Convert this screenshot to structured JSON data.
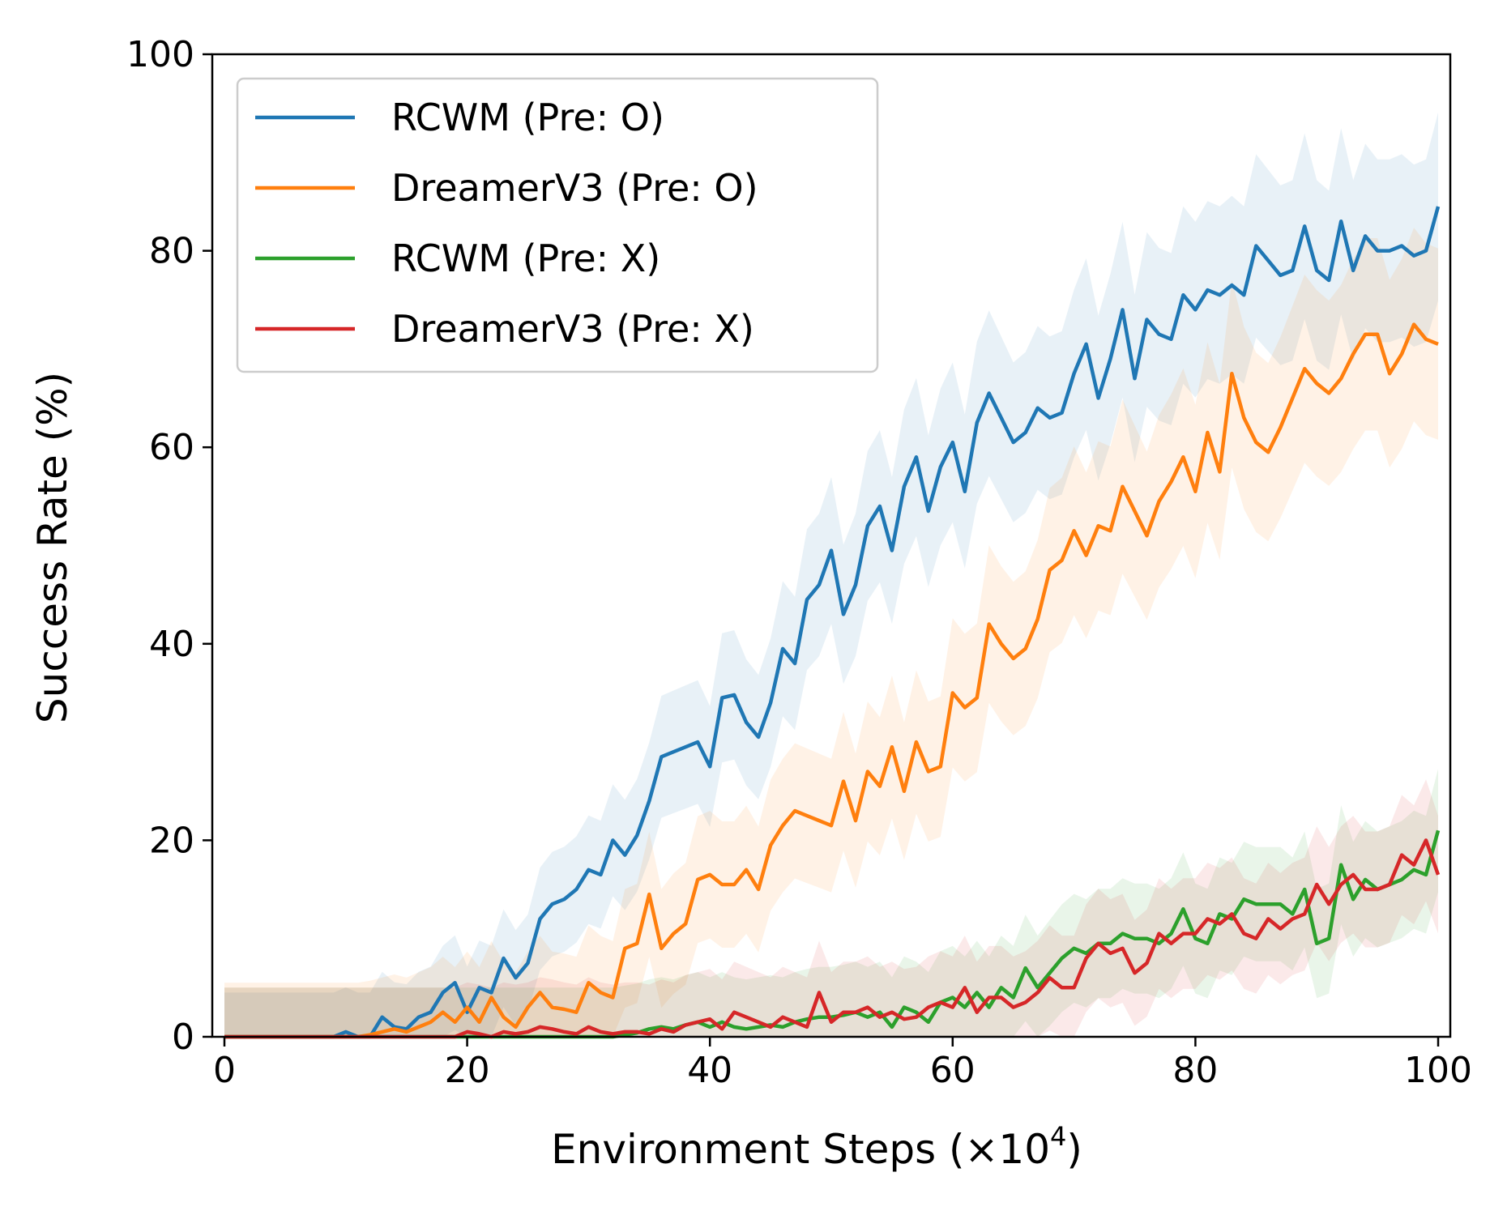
{
  "chart_data": {
    "type": "line",
    "title": "",
    "xlabel": "Environment Steps (×10",
    "xlabel_exponent": "4",
    "xlabel_close": ")",
    "ylabel": "Success Rate (%)",
    "xlim": [
      -1,
      101
    ],
    "ylim": [
      0,
      100
    ],
    "xticks": [
      "0",
      "20",
      "40",
      "60",
      "80",
      "100"
    ],
    "yticks": [
      "0",
      "20",
      "40",
      "60",
      "80",
      "100"
    ],
    "grid": false,
    "legend_position": "top-left",
    "x": [
      0,
      1,
      2,
      3,
      4,
      5,
      6,
      7,
      8,
      9,
      10,
      11,
      12,
      13,
      14,
      15,
      16,
      17,
      18,
      19,
      20,
      21,
      22,
      23,
      24,
      25,
      26,
      27,
      28,
      29,
      30,
      31,
      32,
      33,
      34,
      35,
      36,
      37,
      38,
      39,
      40,
      41,
      42,
      43,
      44,
      45,
      46,
      47,
      48,
      49,
      50,
      51,
      52,
      53,
      54,
      55,
      56,
      57,
      58,
      59,
      60,
      61,
      62,
      63,
      64,
      65,
      66,
      67,
      68,
      69,
      70,
      71,
      72,
      73,
      74,
      75,
      76,
      77,
      78,
      79,
      80,
      81,
      82,
      83,
      84,
      85,
      86,
      87,
      88,
      89,
      90,
      91,
      92,
      93,
      94,
      95,
      96,
      97,
      98,
      99,
      100
    ],
    "series": [
      {
        "name": "RCWM (Pre: O)",
        "color": "#1f77b4",
        "values": [
          0,
          0,
          0,
          0,
          0,
          0,
          0,
          0,
          0,
          0,
          0.5,
          0,
          0,
          2.0,
          1.0,
          0.8,
          2.0,
          2.5,
          4.5,
          5.5,
          2.5,
          5.0,
          4.5,
          8.0,
          6.0,
          7.5,
          12.0,
          13.5,
          14.0,
          15.0,
          17.0,
          16.5,
          20.0,
          18.5,
          20.5,
          24.0,
          28.5,
          29.0,
          29.5,
          30.0,
          27.5,
          34.5,
          34.8,
          32.0,
          30.5,
          34.0,
          39.5,
          38.0,
          44.5,
          46.0,
          49.5,
          43.0,
          46.0,
          52.0,
          54.0,
          49.5,
          56.0,
          59.0,
          53.5,
          58.0,
          60.5,
          55.5,
          62.5,
          65.5,
          63.0,
          60.5,
          61.5,
          64.0,
          63.0,
          63.5,
          67.5,
          70.5,
          65.0,
          69.0,
          74.0,
          67.0,
          73.0,
          71.5,
          71.0,
          75.5,
          74.0,
          76.0,
          75.5,
          76.5,
          75.5,
          80.5,
          79.0,
          77.5,
          78.0,
          82.5,
          78.0,
          77.0,
          83.0,
          78.0,
          81.5,
          80.0,
          80.0,
          80.5,
          79.5,
          80.0,
          84.5
        ],
        "band_half_width": 4.5
      },
      {
        "name": "DreamerV3 (Pre: O)",
        "color": "#ff7f0e",
        "values": [
          0,
          0,
          0,
          0,
          0,
          0,
          0,
          0,
          0,
          0,
          0,
          0,
          0.2,
          0.5,
          0.8,
          0.5,
          1.0,
          1.5,
          2.5,
          1.5,
          3.0,
          1.5,
          4.0,
          2.0,
          1.0,
          3.0,
          4.5,
          3.0,
          2.8,
          2.5,
          5.5,
          4.5,
          4.0,
          9.0,
          9.5,
          14.5,
          9.0,
          10.5,
          11.5,
          16.0,
          16.5,
          15.5,
          15.5,
          17.0,
          15.0,
          19.5,
          21.5,
          23.0,
          22.5,
          22.0,
          21.5,
          26.0,
          22.0,
          27.0,
          25.5,
          29.5,
          25.0,
          30.0,
          27.0,
          27.5,
          35.0,
          33.5,
          34.5,
          42.0,
          40.0,
          38.5,
          39.5,
          42.5,
          47.5,
          48.5,
          51.5,
          49.0,
          52.0,
          51.5,
          56.0,
          53.5,
          51.0,
          54.5,
          56.5,
          59.0,
          55.5,
          61.5,
          57.5,
          67.5,
          63.0,
          60.5,
          59.5,
          62.0,
          65.0,
          68.0,
          66.5,
          65.5,
          67.0,
          69.5,
          71.5,
          71.5,
          67.5,
          69.5,
          72.5,
          71.0,
          70.5
        ],
        "band_half_width": 5.5
      },
      {
        "name": "RCWM (Pre: X)",
        "color": "#2ca02c",
        "values": [
          0,
          0,
          0,
          0,
          0,
          0,
          0,
          0,
          0,
          0,
          0,
          0,
          0,
          0,
          0,
          0,
          0,
          0,
          0,
          0,
          0,
          0,
          0,
          0,
          0,
          0,
          0,
          0,
          0,
          0,
          0,
          0,
          0,
          0.2,
          0.4,
          0.8,
          1.0,
          0.8,
          1.2,
          1.5,
          1.0,
          1.5,
          1.0,
          0.8,
          1.0,
          1.2,
          1.0,
          1.5,
          1.8,
          2.0,
          2.0,
          2.2,
          2.5,
          2.0,
          2.5,
          1.0,
          3.0,
          2.5,
          1.5,
          3.5,
          4.0,
          3.0,
          4.5,
          3.0,
          5.0,
          4.0,
          7.0,
          5.0,
          6.5,
          8.0,
          9.0,
          8.5,
          9.5,
          9.5,
          10.5,
          10.0,
          10.0,
          9.5,
          10.5,
          13.0,
          10.0,
          9.5,
          12.5,
          12.0,
          14.0,
          13.5,
          13.5,
          13.5,
          12.5,
          15.0,
          9.5,
          10.0,
          17.5,
          14.0,
          16.0,
          15.0,
          15.5,
          16.0,
          17.0,
          16.5,
          21.0
        ],
        "band_half_width": 5.0
      },
      {
        "name": "DreamerV3 (Pre: X)",
        "color": "#d62728",
        "values": [
          0,
          0,
          0,
          0,
          0,
          0,
          0,
          0,
          0,
          0,
          0,
          0,
          0,
          0,
          0,
          0,
          0,
          0,
          0,
          0,
          0.5,
          0.3,
          0,
          0.5,
          0.3,
          0.5,
          1.0,
          0.8,
          0.5,
          0.3,
          1.0,
          0.5,
          0.3,
          0.5,
          0.5,
          0.3,
          0.8,
          0.5,
          1.2,
          1.5,
          1.8,
          0.8,
          2.5,
          2.0,
          1.5,
          1.0,
          2.0,
          1.5,
          1.0,
          4.5,
          1.5,
          2.5,
          2.5,
          3.0,
          2.0,
          2.5,
          1.8,
          2.0,
          3.0,
          3.5,
          3.0,
          5.0,
          2.5,
          4.0,
          4.0,
          3.0,
          3.5,
          4.5,
          6.0,
          5.0,
          5.0,
          8.0,
          9.5,
          8.5,
          9.0,
          6.5,
          7.5,
          10.5,
          9.5,
          10.5,
          10.5,
          12.0,
          11.5,
          12.5,
          10.5,
          10.0,
          12.0,
          11.0,
          12.0,
          12.5,
          15.5,
          13.5,
          15.5,
          16.5,
          15.0,
          15.0,
          15.5,
          18.5,
          17.5,
          20.0,
          16.5
        ],
        "band_half_width": 5.0
      }
    ]
  }
}
